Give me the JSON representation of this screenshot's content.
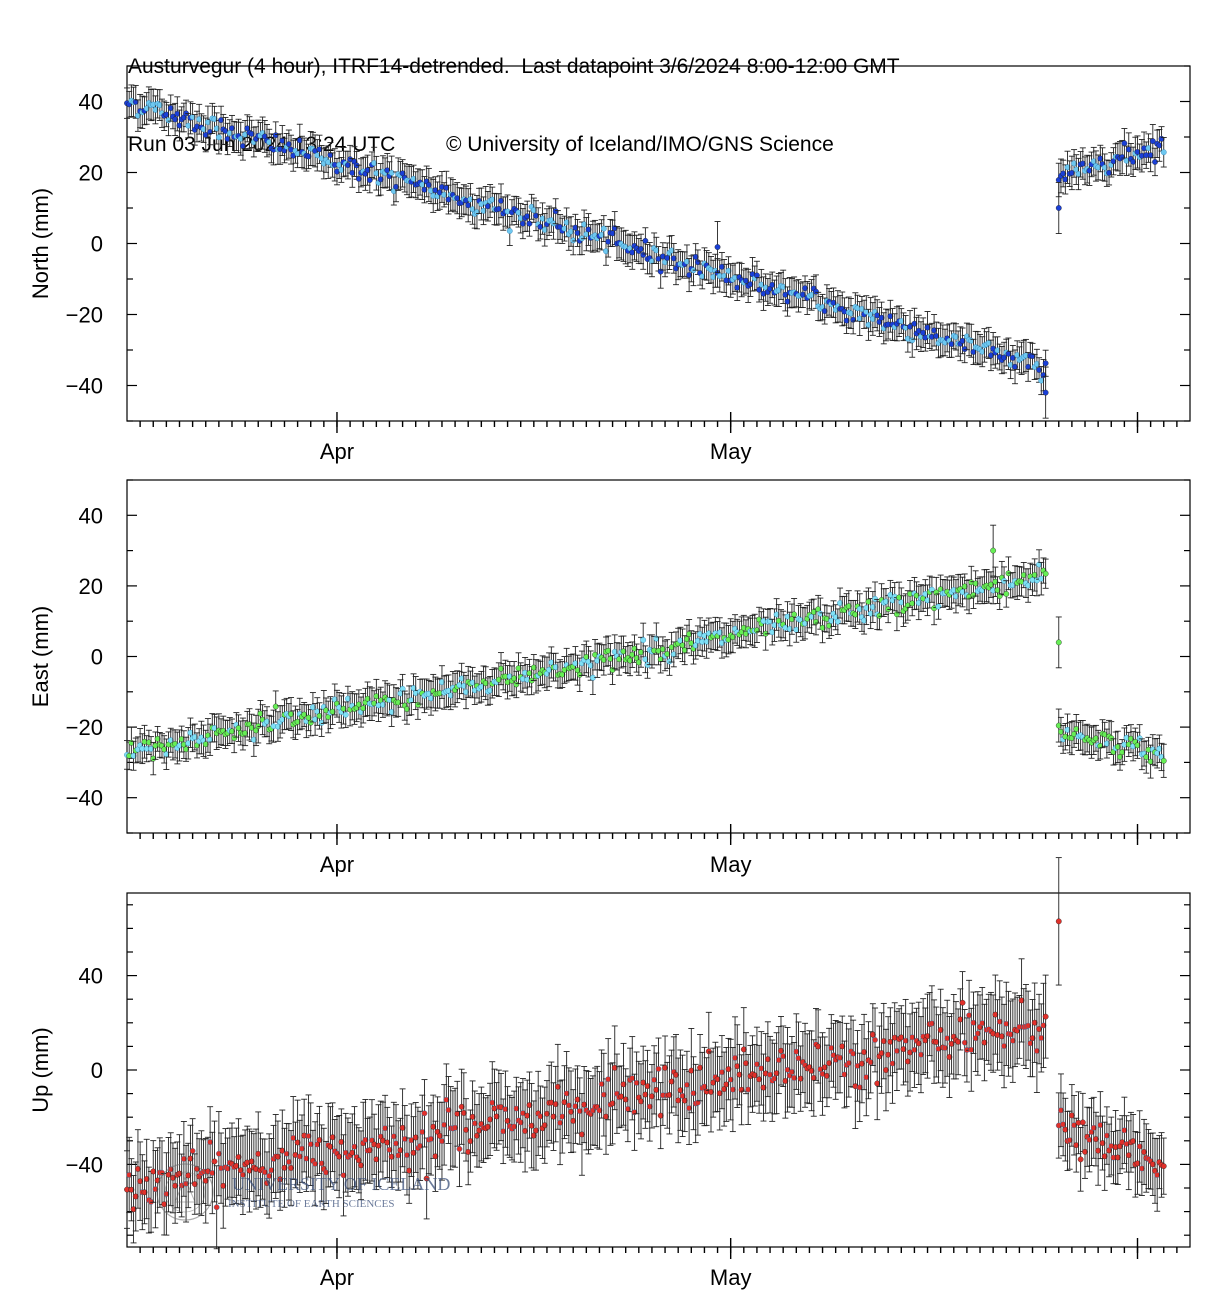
{
  "header": {
    "title": "Austurvegur (4 hour), ITRF14-detrended.  Last datapoint 3/6/2024 8:00-12:00 GMT",
    "run": "Run 03 Jun 2024 13:24 UTC",
    "copyright": "© University of Iceland/IMO/GNS Science"
  },
  "watermark": {
    "name": "UNIVERSITY OF ICELAND",
    "institute": "INSTITUTE OF EARTH SCIENCES"
  },
  "colors": {
    "north_fill": "#1a3fd6",
    "north_alt": "#6ec8f0",
    "east_fill": "#66ee55",
    "east_alt": "#7fe0f5",
    "up_fill": "#e0302a",
    "errorbar": "#222222"
  },
  "chart_data": [
    {
      "type": "scatter",
      "name": "north",
      "ylabel": "North (mm)",
      "ylim": [
        -50,
        50
      ],
      "yticks": [
        -40,
        -20,
        0,
        20,
        40
      ],
      "x_axis": {
        "start": "2024-03-16",
        "end": "2024-06-05",
        "tick_labels": [
          "Apr",
          "May"
        ]
      },
      "segments": [
        {
          "x_start": "2024-03-16",
          "x_end": "2024-05-25",
          "y_start": 40,
          "y_end": -35,
          "noise": 1.5,
          "err": 4
        },
        {
          "x_start": "2024-05-26",
          "x_end": "2024-06-03",
          "y_start": 19,
          "y_end": 28,
          "noise": 1.5,
          "err": 4
        }
      ],
      "outliers": [
        {
          "x": "2024-05-25",
          "y": -42
        },
        {
          "x": "2024-05-26",
          "y": 10
        },
        {
          "x": "2024-04-30",
          "y": -1
        }
      ]
    },
    {
      "type": "scatter",
      "name": "east",
      "ylabel": "East (mm)",
      "ylim": [
        -50,
        50
      ],
      "yticks": [
        -40,
        -20,
        0,
        20,
        40
      ],
      "x_axis": {
        "start": "2024-03-16",
        "end": "2024-06-05",
        "tick_labels": [
          "Apr",
          "May"
        ]
      },
      "segments": [
        {
          "x_start": "2024-03-16",
          "x_end": "2024-05-25",
          "y_start": -27,
          "y_end": 23,
          "noise": 1.5,
          "err": 4
        },
        {
          "x_start": "2024-05-26",
          "x_end": "2024-06-03",
          "y_start": -21,
          "y_end": -28,
          "noise": 1.5,
          "err": 4
        }
      ],
      "outliers": [
        {
          "x": "2024-05-26",
          "y": 4
        },
        {
          "x": "2024-05-21",
          "y": 30
        }
      ]
    },
    {
      "type": "scatter",
      "name": "up",
      "ylabel": "Up (mm)",
      "ylim": [
        -75,
        75
      ],
      "yticks": [
        -40,
        0,
        40
      ],
      "x_axis": {
        "start": "2024-03-16",
        "end": "2024-06-05",
        "tick_labels": [
          "Apr",
          "May"
        ]
      },
      "segments": [
        {
          "x_start": "2024-03-16",
          "x_end": "2024-05-25",
          "y_start": -50,
          "y_end": 20,
          "noise": 5,
          "err": 15
        },
        {
          "x_start": "2024-05-26",
          "x_end": "2024-06-03",
          "y_start": -25,
          "y_end": -40,
          "noise": 4,
          "err": 13
        }
      ],
      "outliers": [
        {
          "x": "2024-05-26",
          "y": 63
        }
      ]
    }
  ]
}
